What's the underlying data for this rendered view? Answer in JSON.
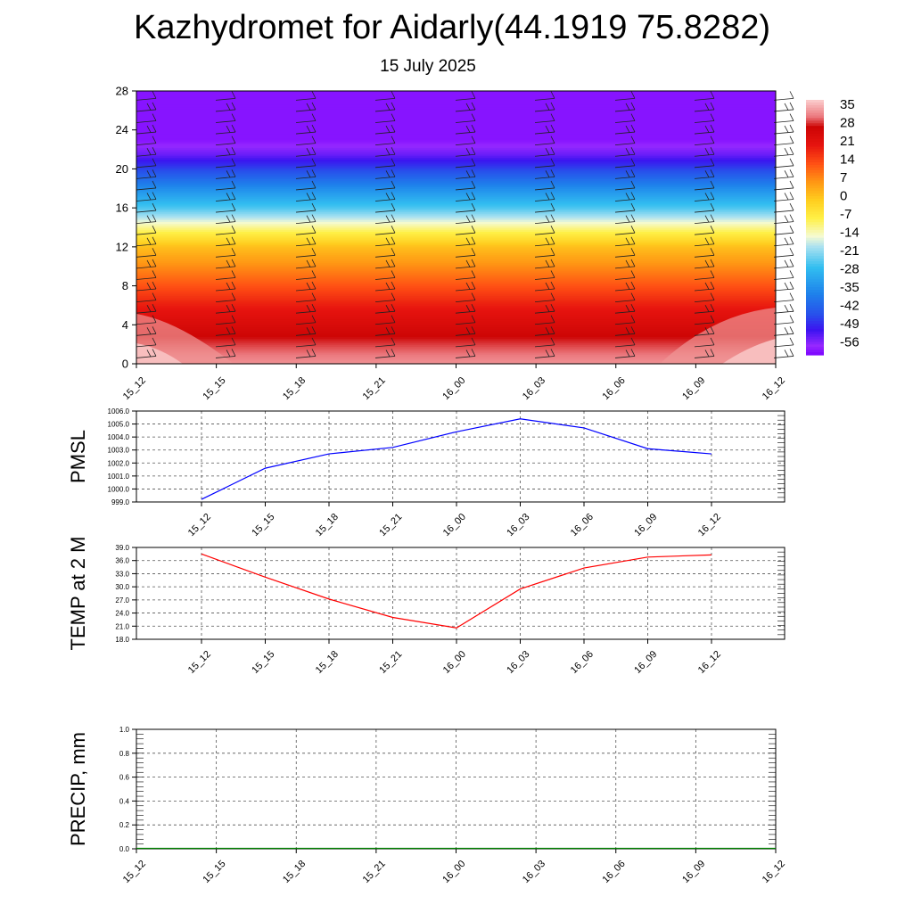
{
  "title": "Kazhydromet for Aidarly(44.1919 75.8282)",
  "subtitle": "15 July 2025",
  "chart_data": [
    {
      "type": "heatmap",
      "title": "",
      "xlabel": "",
      "ylabel": "",
      "x_ticks": [
        "15_12",
        "15_15",
        "15_18",
        "15_21",
        "16_00",
        "16_03",
        "16_06",
        "16_09",
        "16_12"
      ],
      "y_ticks": [
        "0",
        "4",
        "8",
        "12",
        "16",
        "20",
        "24",
        "28"
      ],
      "ylim": [
        0,
        28
      ],
      "colorbar_labels": [
        "35",
        "28",
        "21",
        "14",
        "7",
        "0",
        "-7",
        "-14",
        "-21",
        "-28",
        "-35",
        "-42",
        "-49",
        "-56"
      ],
      "colorbar_range": [
        -60,
        38
      ],
      "temperature_profile": {
        "levels": [
          0,
          2,
          4,
          6,
          8,
          10,
          12,
          13.5,
          16,
          18,
          20,
          21.5,
          23,
          28
        ],
        "values": [
          34,
          30,
          25,
          20,
          14,
          8,
          2,
          -7,
          -24,
          -34,
          -45,
          -53,
          -58,
          -58
        ]
      },
      "wind_barbs": true
    },
    {
      "type": "line",
      "ylabel": "PMSL",
      "categories": [
        "15_12",
        "15_15",
        "15_18",
        "15_21",
        "16_00",
        "16_03",
        "16_06",
        "16_09",
        "16_12"
      ],
      "values": [
        999.2,
        1001.6,
        1002.7,
        1003.2,
        1004.4,
        1005.4,
        1004.7,
        1003.1,
        1002.7
      ],
      "ylim": [
        999.0,
        1006.0
      ],
      "y_ticks": [
        "999.0",
        "1000.0",
        "1001.0",
        "1002.0",
        "1003.0",
        "1004.0",
        "1005.0",
        "1006.0"
      ],
      "color": "#0000ff",
      "grid": true
    },
    {
      "type": "line",
      "ylabel": "TEMP at 2 M",
      "categories": [
        "15_12",
        "15_15",
        "15_18",
        "15_21",
        "16_00",
        "16_03",
        "16_06",
        "16_09",
        "16_12"
      ],
      "values": [
        37.5,
        32.2,
        27.2,
        23.0,
        20.6,
        29.5,
        34.3,
        36.8,
        37.3
      ],
      "ylim": [
        18.0,
        39.0
      ],
      "y_ticks": [
        "18.0",
        "21.0",
        "24.0",
        "27.0",
        "30.0",
        "33.0",
        "36.0",
        "39.0"
      ],
      "color": "#ff0000",
      "grid": true
    },
    {
      "type": "line",
      "ylabel": "PRECIP, mm",
      "categories": [
        "15_12",
        "15_15",
        "15_18",
        "15_21",
        "16_00",
        "16_03",
        "16_06",
        "16_09",
        "16_12"
      ],
      "values": [
        0,
        0,
        0,
        0,
        0,
        0,
        0,
        0,
        0
      ],
      "ylim": [
        0.0,
        1.0
      ],
      "y_ticks": [
        "0.0",
        "0.2",
        "0.4",
        "0.6",
        "0.8",
        "1.0"
      ],
      "color": "#008000",
      "grid": true
    }
  ]
}
